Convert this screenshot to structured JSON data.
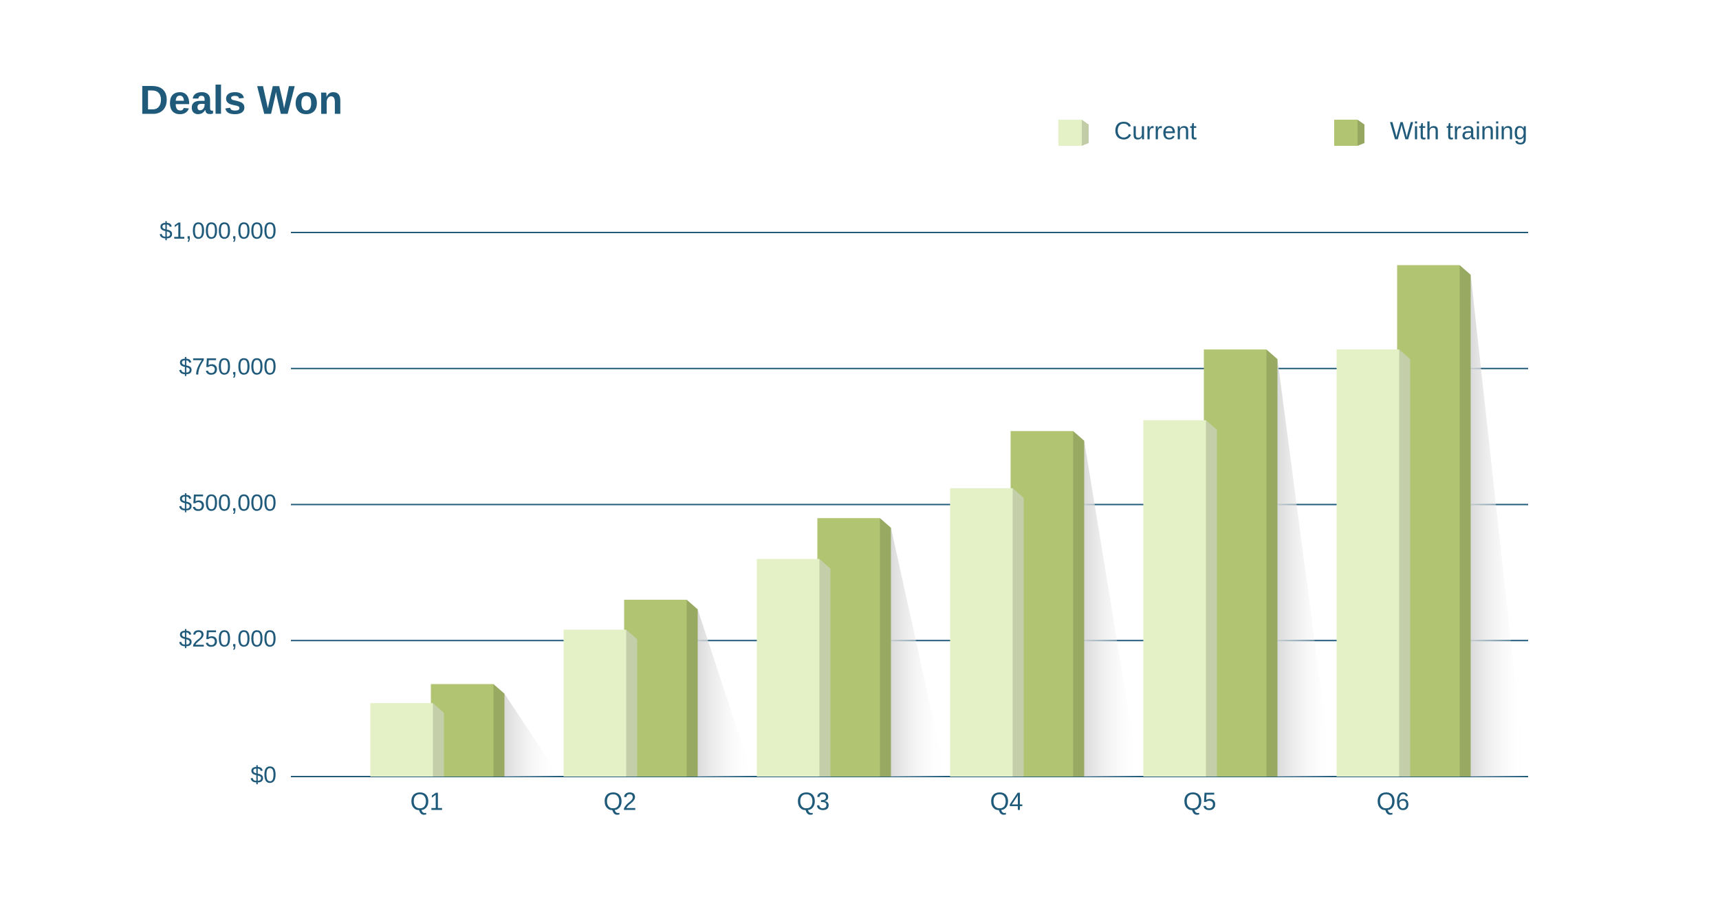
{
  "chart_data": {
    "type": "bar",
    "title": "Deals Won",
    "categories": [
      "Q1",
      "Q2",
      "Q3",
      "Q4",
      "Q5",
      "Q6"
    ],
    "series": [
      {
        "name": "Current",
        "color": "#e4f0c5",
        "values": [
          135000,
          270000,
          400000,
          530000,
          655000,
          785000
        ]
      },
      {
        "name": "With training",
        "color": "#b1c472",
        "values": [
          170000,
          325000,
          475000,
          635000,
          785000,
          940000
        ]
      }
    ],
    "ylim": [
      0,
      1000000
    ],
    "yticks": [
      {
        "value": 0,
        "label": "$0"
      },
      {
        "value": 250000,
        "label": "$250,000"
      },
      {
        "value": 500000,
        "label": "$500,000"
      },
      {
        "value": 750000,
        "label": "$750,000"
      },
      {
        "value": 1000000,
        "label": "$1,000,000"
      }
    ],
    "grid": true,
    "legend": "top-right"
  }
}
